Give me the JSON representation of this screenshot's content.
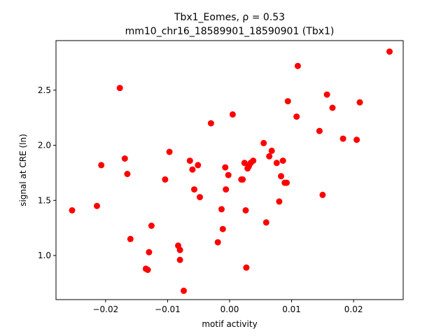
{
  "chart_data": {
    "type": "scatter",
    "title_line1": "Tbx1_Eomes, ρ = 0.53",
    "title_line2": "mm10_chr16_18589901_18590901 (Tbx1)",
    "xlabel": "motif activity",
    "ylabel": "signal at CRE (ln)",
    "xlim": [
      -0.028,
      0.028
    ],
    "ylim": [
      0.6,
      2.95
    ],
    "xticks": [
      -0.02,
      -0.01,
      0.0,
      0.01,
      0.02
    ],
    "xtick_labels": [
      "−0.02",
      "−0.01",
      "0.00",
      "0.01",
      "0.02"
    ],
    "yticks": [
      1.0,
      1.5,
      2.0,
      2.5
    ],
    "ytick_labels": [
      "1.0",
      "1.5",
      "2.0",
      "2.5"
    ],
    "marker_color": "#ff0000",
    "grid": false,
    "points": [
      {
        "x": -0.0254,
        "y": 1.41
      },
      {
        "x": -0.0214,
        "y": 1.45
      },
      {
        "x": -0.0207,
        "y": 1.82
      },
      {
        "x": -0.0177,
        "y": 2.52
      },
      {
        "x": -0.0169,
        "y": 1.88
      },
      {
        "x": -0.0165,
        "y": 1.74
      },
      {
        "x": -0.016,
        "y": 1.15
      },
      {
        "x": -0.0132,
        "y": 0.87
      },
      {
        "x": -0.0135,
        "y": 0.88
      },
      {
        "x": -0.013,
        "y": 1.03
      },
      {
        "x": -0.0126,
        "y": 1.27
      },
      {
        "x": -0.0104,
        "y": 1.69
      },
      {
        "x": -0.0097,
        "y": 1.94
      },
      {
        "x": -0.0083,
        "y": 1.09
      },
      {
        "x": -0.008,
        "y": 1.05
      },
      {
        "x": -0.008,
        "y": 0.96
      },
      {
        "x": -0.0074,
        "y": 0.68
      },
      {
        "x": -0.0064,
        "y": 1.86
      },
      {
        "x": -0.006,
        "y": 1.78
      },
      {
        "x": -0.0057,
        "y": 1.6
      },
      {
        "x": -0.0051,
        "y": 1.82
      },
      {
        "x": -0.0048,
        "y": 1.53
      },
      {
        "x": -0.003,
        "y": 2.2
      },
      {
        "x": -0.0019,
        "y": 1.12
      },
      {
        "x": -0.0013,
        "y": 1.42
      },
      {
        "x": -0.0011,
        "y": 1.24
      },
      {
        "x": -0.0007,
        "y": 1.8
      },
      {
        "x": -0.0006,
        "y": 1.6
      },
      {
        "x": -0.0002,
        "y": 1.73
      },
      {
        "x": 0.0005,
        "y": 2.28
      },
      {
        "x": 0.0019,
        "y": 1.69
      },
      {
        "x": 0.0021,
        "y": 1.69
      },
      {
        "x": 0.0024,
        "y": 1.84
      },
      {
        "x": 0.0026,
        "y": 1.41
      },
      {
        "x": 0.0027,
        "y": 0.89
      },
      {
        "x": 0.0029,
        "y": 1.79
      },
      {
        "x": 0.0031,
        "y": 1.81
      },
      {
        "x": 0.0034,
        "y": 1.84
      },
      {
        "x": 0.0038,
        "y": 1.86
      },
      {
        "x": 0.0055,
        "y": 2.02
      },
      {
        "x": 0.0059,
        "y": 1.3
      },
      {
        "x": 0.0064,
        "y": 1.9
      },
      {
        "x": 0.0068,
        "y": 1.95
      },
      {
        "x": 0.0076,
        "y": 1.84
      },
      {
        "x": 0.008,
        "y": 1.49
      },
      {
        "x": 0.0083,
        "y": 1.72
      },
      {
        "x": 0.0086,
        "y": 1.86
      },
      {
        "x": 0.0089,
        "y": 1.66
      },
      {
        "x": 0.0092,
        "y": 1.66
      },
      {
        "x": 0.0094,
        "y": 2.4
      },
      {
        "x": 0.0108,
        "y": 2.26
      },
      {
        "x": 0.011,
        "y": 2.72
      },
      {
        "x": 0.0145,
        "y": 2.13
      },
      {
        "x": 0.015,
        "y": 1.55
      },
      {
        "x": 0.0157,
        "y": 2.46
      },
      {
        "x": 0.0166,
        "y": 2.34
      },
      {
        "x": 0.0183,
        "y": 2.06
      },
      {
        "x": 0.0205,
        "y": 2.05
      },
      {
        "x": 0.021,
        "y": 2.39
      },
      {
        "x": 0.0258,
        "y": 2.85
      }
    ]
  }
}
